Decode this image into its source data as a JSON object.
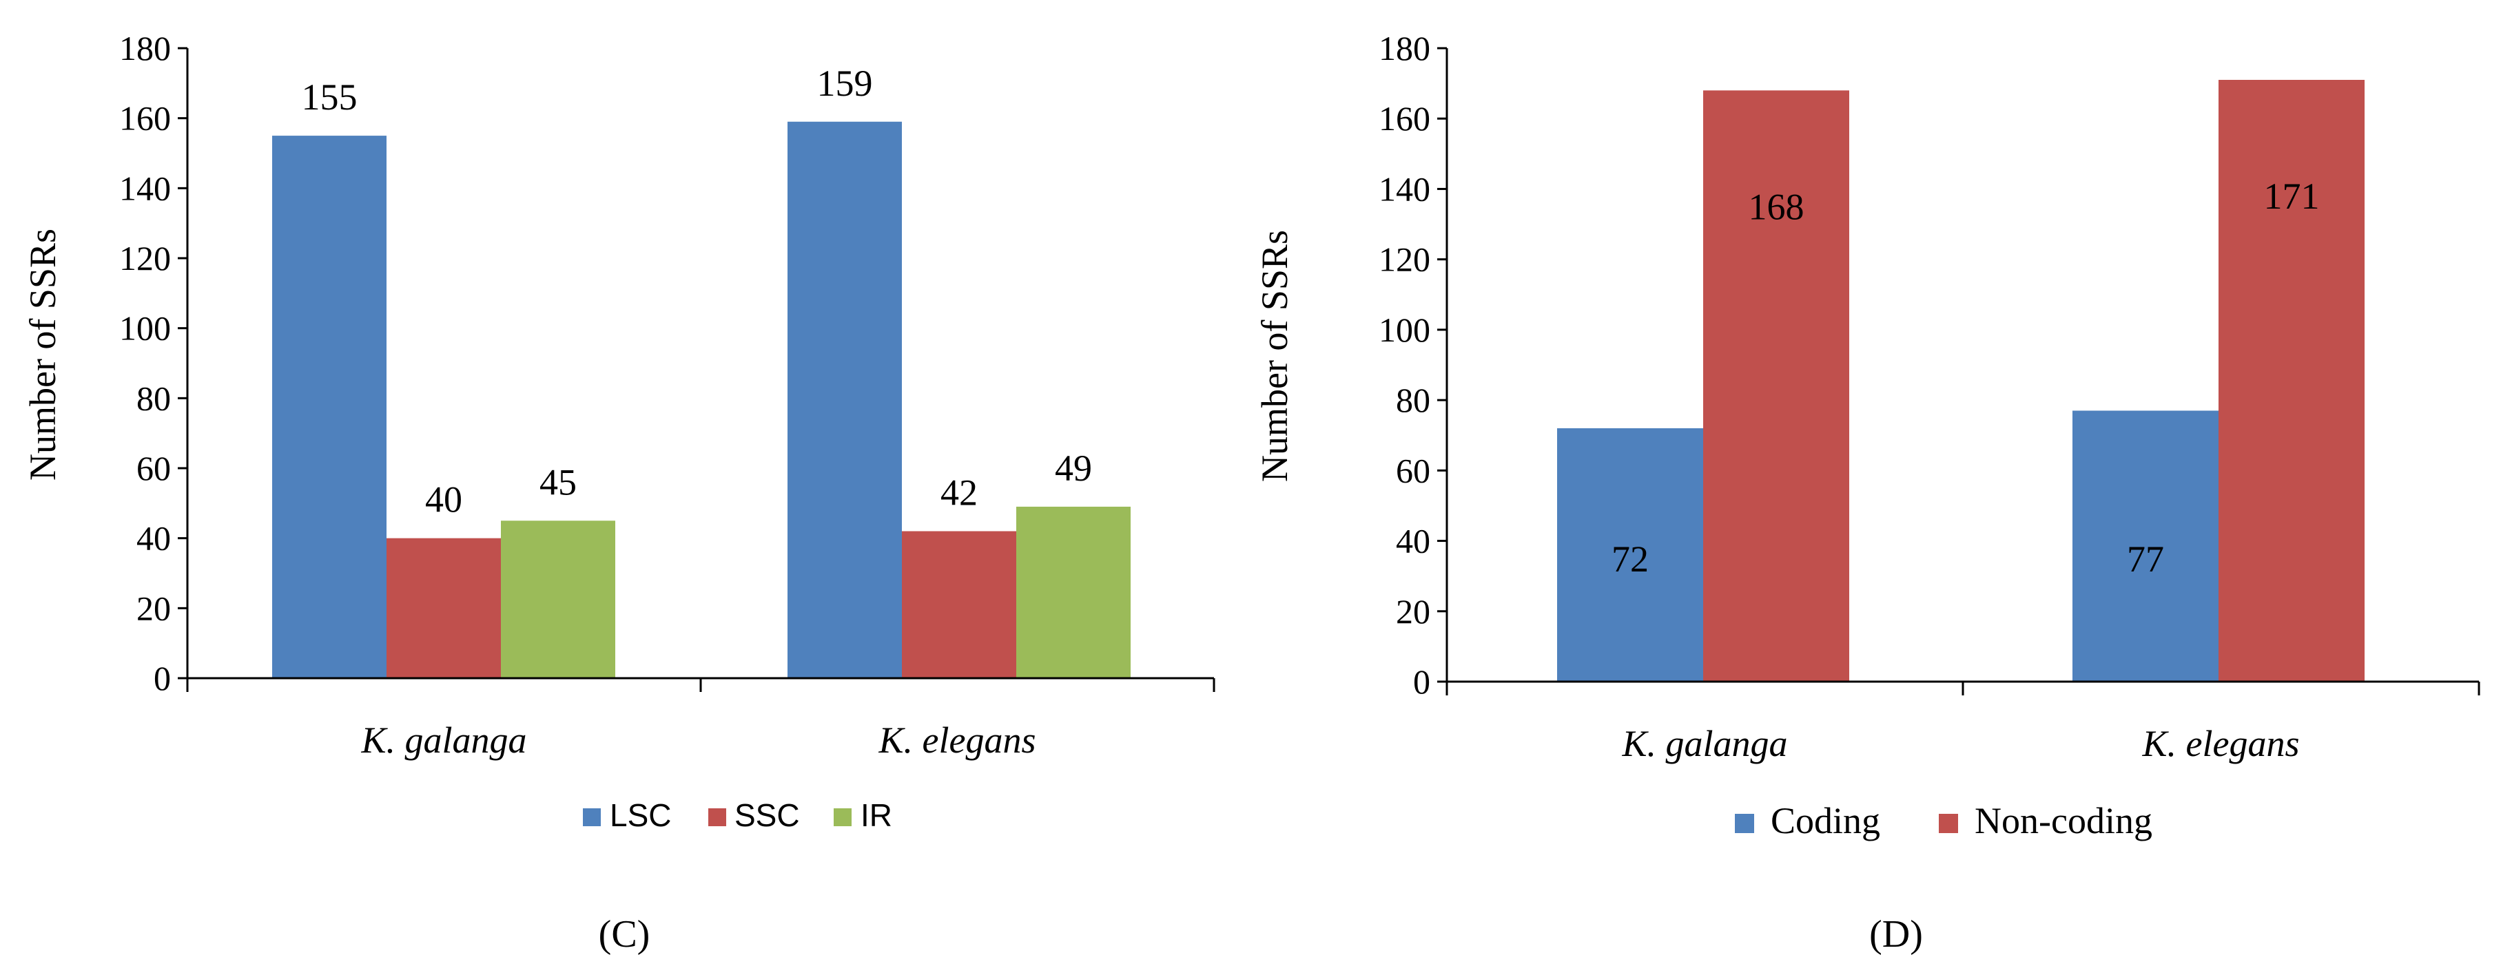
{
  "chart_data": [
    {
      "type": "bar",
      "panel_label": "(C)",
      "ylabel": "Number of SSRs",
      "ylim": [
        0,
        180
      ],
      "yticks": [
        "0",
        "20",
        "40",
        "60",
        "80",
        "100",
        "120",
        "140",
        "160",
        "180"
      ],
      "categories": [
        "K. galanga",
        "K. elegans"
      ],
      "legend_position": "bottom",
      "series": [
        {
          "name": "LSC",
          "color": "#4F81BD",
          "values": [
            155,
            159
          ],
          "labels": [
            "155",
            "159"
          ]
        },
        {
          "name": "SSC",
          "color": "#C0504D",
          "values": [
            40,
            42
          ],
          "labels": [
            "40",
            "42"
          ]
        },
        {
          "name": "IR",
          "color": "#9BBB59",
          "values": [
            45,
            49
          ],
          "labels": [
            "45",
            "49"
          ]
        }
      ]
    },
    {
      "type": "bar",
      "panel_label": "(D)",
      "ylabel": "Number of SSRs",
      "ylim": [
        0,
        180
      ],
      "yticks": [
        "0",
        "20",
        "40",
        "60",
        "80",
        "100",
        "120",
        "140",
        "160",
        "180"
      ],
      "categories": [
        "K. galanga",
        "K. elegans"
      ],
      "legend_position": "bottom",
      "series": [
        {
          "name": "Coding",
          "color": "#4F81BD",
          "values": [
            72,
            77
          ],
          "labels": [
            "72",
            "77"
          ]
        },
        {
          "name": "Non-coding",
          "color": "#C0504D",
          "values": [
            168,
            171
          ],
          "labels": [
            "168",
            "171"
          ]
        }
      ]
    }
  ]
}
